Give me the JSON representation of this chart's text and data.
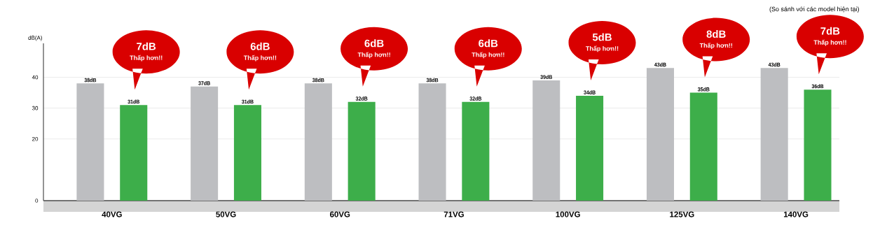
{
  "chart_data": {
    "type": "bar",
    "ylabel": "dB(A)",
    "categories": [
      "40VG",
      "50VG",
      "60VG",
      "71VG",
      "100VG",
      "125VG",
      "140VG"
    ],
    "series": [
      {
        "color": "#bdbec1",
        "values": [
          38,
          37,
          38,
          38,
          39,
          43,
          43
        ],
        "value_labels": [
          "38dB",
          "37dB",
          "38dB",
          "38dB",
          "39dB",
          "43dB",
          "43dB"
        ]
      },
      {
        "color": "#3dae4a",
        "values": [
          31,
          31,
          32,
          32,
          34,
          35,
          36
        ],
        "value_labels": [
          "31dB",
          "31dB",
          "32dB",
          "32dB",
          "34dB",
          "35dB",
          "36dB"
        ]
      }
    ],
    "ylim": [
      0,
      51
    ],
    "yticks": [
      0,
      20,
      30,
      40
    ],
    "grid": "y",
    "annotations": [
      "(So sánh với các model hiện tại)",
      "7dB",
      "Thấp hơn!!",
      "6dB",
      "Thấp hơn!!",
      "6dB",
      "Thấp hơn!!",
      "6dB",
      "Thấp hơn!!",
      "5dB",
      "Thấp hơn!!",
      "8dB",
      "Thấp hơn!!",
      "7dB",
      "Thấp hơn!!"
    ]
  }
}
